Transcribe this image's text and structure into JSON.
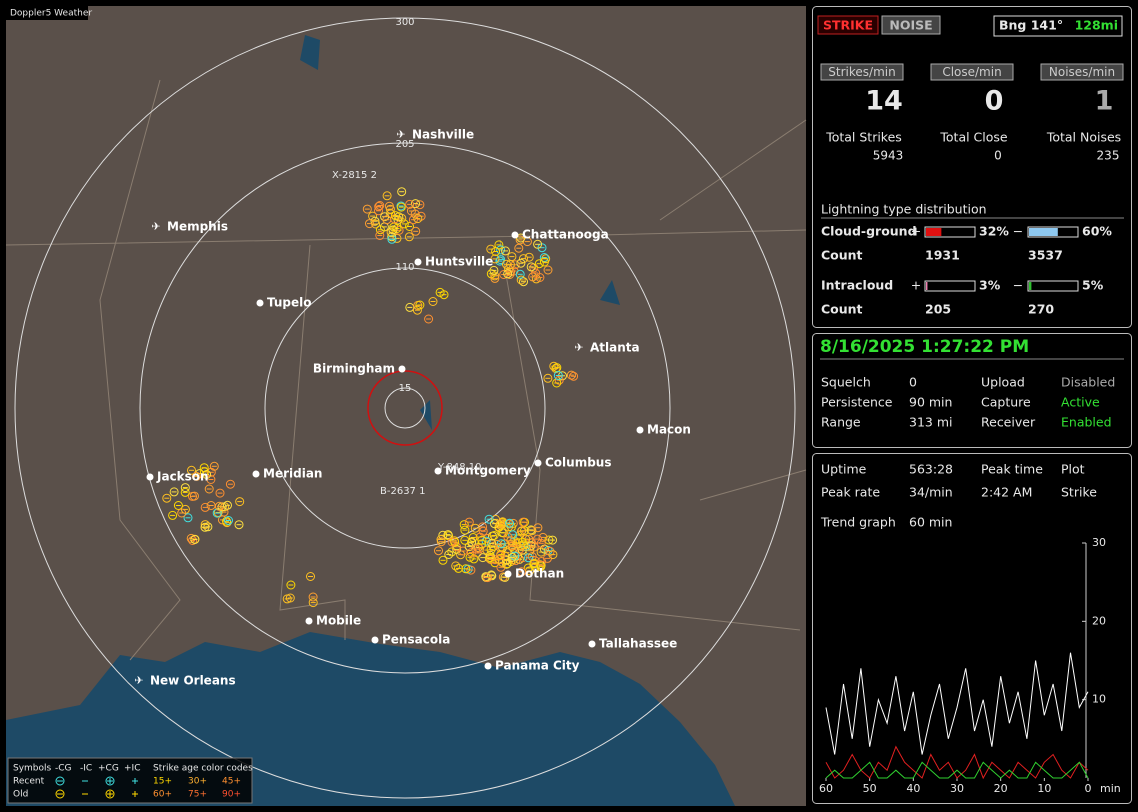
{
  "map": {
    "title": "Doppler5 Weather",
    "range_labels": [
      "300",
      "205",
      "110",
      "15"
    ],
    "cities": [
      "Nashville",
      "Memphis",
      "Chattanooga",
      "Huntsville",
      "Tupelo",
      "Atlanta",
      "Birmingham",
      "Macon",
      "Jackson",
      "Meridian",
      "Montgomery",
      "Columbus",
      "Dothan",
      "Mobile",
      "Pensacola",
      "Tallahassee",
      "Panama City",
      "New Orleans"
    ],
    "storm_labels": [
      "X-2815 2",
      "Y-848 10",
      "B-2637 1"
    ],
    "legend": {
      "symbols_label": "Symbols",
      "symbol_types": [
        "-CG",
        "-IC",
        "+CG",
        "+IC"
      ],
      "age_label": "Strike age color codes",
      "rows": [
        {
          "label": "Recent",
          "ages": [
            "15+",
            "30+",
            "45+"
          ]
        },
        {
          "label": "Old",
          "ages": [
            "60+",
            "75+",
            "90+"
          ]
        }
      ]
    }
  },
  "strike_panel": {
    "modes": [
      "STRIKE",
      "NOISE"
    ],
    "bearing": "Bng 141°",
    "distance": "128mi",
    "rates": [
      {
        "label": "Strikes/min",
        "value": 14,
        "total_label": "Total Strikes",
        "total": 5943
      },
      {
        "label": "Close/min",
        "value": 0,
        "total_label": "Total Close",
        "total": 0
      },
      {
        "label": "Noises/min",
        "value": 1,
        "total_label": "Total Noises",
        "total": 235
      }
    ],
    "distribution": {
      "title": "Lightning type distribution",
      "count_label": "Count",
      "types": [
        {
          "name": "Cloud-ground",
          "plus_sign": "+",
          "minus_sign": "−",
          "plus": {
            "value": 32,
            "label": "32%",
            "color": "#e01010"
          },
          "minus": {
            "value": 60,
            "label": "60%",
            "color": "#8ec8f0"
          },
          "plus_count": 1931,
          "minus_count": 3537
        },
        {
          "name": "Intracloud",
          "plus_sign": "+",
          "minus_sign": "−",
          "plus": {
            "value": 3,
            "label": "3%",
            "color": "#f080b0"
          },
          "minus": {
            "value": 5,
            "label": "5%",
            "color": "#30c030"
          },
          "plus_count": 205,
          "minus_count": 270
        }
      ]
    }
  },
  "status_panel": {
    "datetime": "8/16/2025 1:27:22 PM",
    "rows": [
      {
        "label": "Squelch",
        "value": 0,
        "label2": "Upload",
        "value2": "Disabled"
      },
      {
        "label": "Persistence",
        "value": "90 min",
        "label2": "Capture",
        "value2": "Active"
      },
      {
        "label": "Range",
        "value": "313 mi",
        "label2": "Receiver",
        "value2": "Enabled"
      }
    ]
  },
  "stats_panel": {
    "uptime_label": "Uptime",
    "uptime": "563:28",
    "peak_time_label": "Peak time",
    "peak_time": "2:42 AM",
    "plot_label": "Plot",
    "peak_rate_label": "Peak rate",
    "peak_rate": "34/min",
    "plot": "Strike",
    "trend_label": "Trend graph",
    "trend": "60 min"
  },
  "chart_data": {
    "type": "line",
    "x_unit": "min",
    "x": [
      60,
      58,
      56,
      54,
      52,
      50,
      48,
      46,
      44,
      42,
      40,
      38,
      36,
      34,
      32,
      30,
      28,
      26,
      24,
      22,
      20,
      18,
      16,
      14,
      12,
      10,
      8,
      6,
      4,
      2,
      0
    ],
    "xlim": [
      60,
      0
    ],
    "xticks": [
      60,
      50,
      40,
      30,
      20,
      10,
      0
    ],
    "ylim": [
      0,
      30
    ],
    "yticks": [
      10,
      20,
      30
    ],
    "series": [
      {
        "color": "#ffffff",
        "values": [
          9,
          3,
          12,
          5,
          14,
          4,
          10,
          7,
          13,
          6,
          11,
          3,
          8,
          12,
          5,
          9,
          14,
          6,
          10,
          4,
          13,
          7,
          11,
          5,
          15,
          8,
          12,
          6,
          16,
          9,
          11
        ]
      },
      {
        "color": "#e02020",
        "values": [
          2,
          0,
          1,
          3,
          1,
          0,
          2,
          1,
          4,
          2,
          1,
          0,
          3,
          1,
          2,
          0,
          1,
          3,
          0,
          2,
          1,
          0,
          2,
          1,
          0,
          2,
          3,
          1,
          0,
          2,
          1
        ]
      },
      {
        "color": "#30d030",
        "values": [
          0,
          1,
          0,
          0,
          1,
          2,
          0,
          0,
          1,
          0,
          0,
          2,
          1,
          0,
          0,
          1,
          0,
          0,
          2,
          1,
          0,
          1,
          0,
          0,
          2,
          1,
          0,
          0,
          1,
          2,
          0
        ]
      }
    ]
  }
}
